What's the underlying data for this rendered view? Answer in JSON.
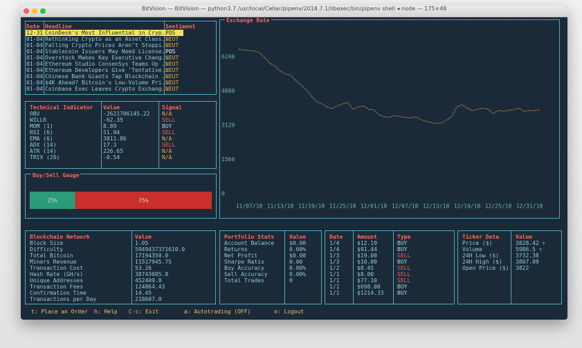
{
  "window_title": "BitVision — BitVision — python3.7 /usr/local/Cellar/pipenv/2018.7.1/libexec/bin/pipenv shell ◂ node — 175×48",
  "headlines": {
    "header": [
      "Date",
      "Headline",
      "Sentiment"
    ],
    "selected_row": 0,
    "rows": [
      [
        "12-31",
        "CoinDesk's Most Influential in Cryp...",
        "POS"
      ],
      [
        "01-04",
        "Rethinking Crypto as an Asset Class...",
        "NEUT"
      ],
      [
        "01-04",
        "Falling Crypto Prices Aren't Stoppi...",
        "NEUT"
      ],
      [
        "01-04",
        "Stablecoin Issuers May Need License...",
        "POS"
      ],
      [
        "01-04",
        "Overstock Makes Key Executive Chang...",
        "NEUT"
      ],
      [
        "01-04",
        "Ethereum Studio ConsenSys Teams Up ...",
        "NEUT"
      ],
      [
        "01-04",
        "Ethereum Developers Give 'Tentative...",
        "NEUT"
      ],
      [
        "01-04",
        "Chinese Bank Giants Tap Blockchain ...",
        "NEUT"
      ],
      [
        "01-04",
        "$4K Ahead? Bitcoin's Low-Volume Pri...",
        "NEUT"
      ],
      [
        "01-04",
        "Coinbase Exec Leaves Crypto Exchang...",
        "NEUT"
      ]
    ]
  },
  "technical_indicators": {
    "header": [
      "Technical Indicator",
      "Value",
      "Signal"
    ],
    "rows": [
      [
        "OBV",
        "-2621706145.22",
        "N/A"
      ],
      [
        "WILLR",
        "-62.35",
        "SELL"
      ],
      [
        "MOM (1)",
        "8.89",
        "BUY"
      ],
      [
        "RSI (6)",
        "51.94",
        "SELL"
      ],
      [
        "EMA (6)",
        "3811.86",
        "N/A"
      ],
      [
        "ADX (14)",
        "17.3",
        "SELL"
      ],
      [
        "ATR (14)",
        "226.65",
        "N/A"
      ],
      [
        "TRIX (20)",
        "-0.54",
        "N/A"
      ]
    ]
  },
  "blockchain_network": {
    "header": [
      "Blockchain Network",
      "Value"
    ],
    "rows": [
      [
        "Block Size",
        "1.05"
      ],
      [
        "Difficulty",
        "5949437371610.0"
      ],
      [
        "Total Bitcoin",
        "17194350.0"
      ],
      [
        "Miners Revenue",
        "11517945.75"
      ],
      [
        "Transaction Cost",
        "53.26"
      ],
      [
        "Hash Rate (GH/s)",
        "38743005.8"
      ],
      [
        "Unique Addresses",
        "452409.0"
      ],
      [
        "Transaction Fees",
        "124864.43"
      ],
      [
        "Confirmation Time",
        "14.45"
      ],
      [
        "Transactions per Day",
        "218607.0"
      ]
    ]
  },
  "portfolio_stats": {
    "header": [
      "Portfolio Stats",
      "Value"
    ],
    "rows": [
      [
        "Account Balance",
        "$0.00"
      ],
      [
        "Returns",
        "0.00%"
      ],
      [
        "Net Profit",
        "$0.00"
      ],
      [
        "Sharpe Ratio",
        "0.00"
      ],
      [
        "Buy Accuracy",
        "0.00%"
      ],
      [
        "Sell Accuracy",
        "0.00%"
      ],
      [
        "Total Trades",
        "0"
      ]
    ]
  },
  "transactions": {
    "header": [
      "Date",
      "Amount",
      "Type"
    ],
    "rows": [
      [
        "1/4",
        "$12.19",
        "BUY"
      ],
      [
        "1/4",
        "$91.44",
        "BUY"
      ],
      [
        "1/3",
        "$19.00",
        "SELL"
      ],
      [
        "1/3",
        "$10.00",
        "BUY"
      ],
      [
        "1/2",
        "$8.45",
        "SELL"
      ],
      [
        "1/1",
        "$8.00",
        "SELL"
      ],
      [
        "1/1",
        "$77.10",
        "SELL"
      ],
      [
        "1/1",
        "$698.00",
        "BUY"
      ],
      [
        "1/1",
        "$1214.33",
        "BUY"
      ]
    ]
  },
  "ticker_data": {
    "header": [
      "Ticker Data",
      "Value"
    ],
    "rows": [
      [
        "Price ($)",
        "3828.42 ↑"
      ],
      [
        "Volume",
        "5986.5 ↑"
      ],
      [
        "24H Low ($)",
        "3732.38"
      ],
      [
        "24H High ($)",
        "3807.09"
      ],
      [
        "Open Price ($)",
        "3822"
      ]
    ]
  },
  "signal_colors": {
    "SELL": "#ff5c5c",
    "BUY": "#9fd6e4",
    "N/A": "#e8a93c",
    "POS": "#f2f2e8",
    "NEUT": "#e8a93c"
  },
  "footer": [
    "t: Place an Order",
    "h: Help",
    "C-c: Exit",
    "a: Autotrading (OFF)",
    "o: Logout"
  ],
  "chart_data": [
    {
      "type": "line",
      "title": "Exchange Rate",
      "color": "#e0a23e",
      "categories": [
        null,
        null,
        "11/07/18",
        null,
        null,
        null,
        null,
        null,
        "11/13/18",
        null,
        null,
        null,
        null,
        null,
        "11/19/18",
        null,
        null,
        null,
        null,
        null,
        "11/25/18",
        null,
        null,
        null,
        null,
        null,
        "12/01/18",
        null,
        null,
        null,
        null,
        null,
        "12/07/18",
        null,
        null,
        null,
        null,
        null,
        "12/13/18",
        null,
        null,
        null,
        null,
        null,
        "12/19/18",
        null,
        null,
        null,
        null,
        null,
        "12/25/18",
        null,
        null,
        null,
        null,
        null,
        "12/31/18",
        null,
        null
      ],
      "values": [
        6580,
        6550,
        6520,
        6500,
        6430,
        6200,
        5950,
        5800,
        5600,
        5450,
        5400,
        5150,
        4950,
        4750,
        4450,
        4200,
        4100,
        3950,
        3880,
        4000,
        4100,
        4150,
        3850,
        3950,
        4000,
        3850,
        3820,
        3600,
        3500,
        3480,
        3550,
        3520,
        3480,
        3450,
        3500,
        3380,
        3300,
        3250,
        3200,
        3220,
        3350,
        3500,
        3950,
        4050,
        3900,
        3780,
        3850,
        3900,
        3850,
        3650,
        3800,
        3750,
        3800,
        3820,
        3900,
        3750,
        3800,
        3780,
        3820
      ],
      "ylim": [
        0,
        7500
      ],
      "yticks": [
        0,
        1560,
        3120,
        4680,
        6240
      ]
    },
    {
      "type": "gauge",
      "title": "Buy/Sell Gauge",
      "values": [
        25,
        75
      ],
      "value_labels": [
        "25%",
        "75%"
      ],
      "colors": [
        "#2a9c7a",
        "#c9302b"
      ]
    }
  ]
}
